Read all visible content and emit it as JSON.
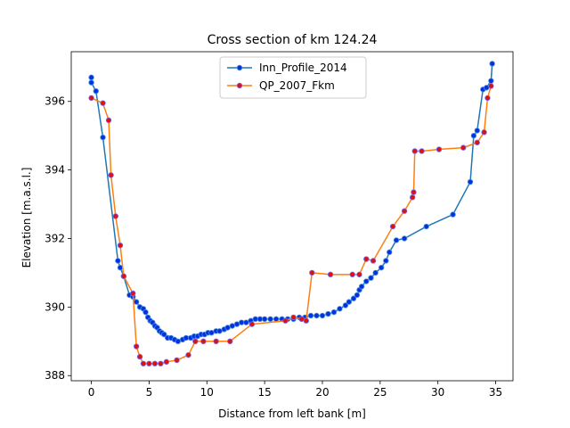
{
  "chart_data": {
    "type": "line",
    "title": "Cross section of km 124.24",
    "xlabel": "Distance from left bank [m]",
    "ylabel": "Elevation [m.a.s.l.]",
    "xlim": [
      -1.74,
      36.5
    ],
    "ylim": [
      387.85,
      397.45
    ],
    "xticks": [
      0,
      5,
      10,
      15,
      20,
      25,
      30,
      35
    ],
    "xtick_labels": [
      "0",
      "5",
      "10",
      "15",
      "20",
      "25",
      "30",
      "35"
    ],
    "yticks": [
      388,
      390,
      392,
      394,
      396
    ],
    "ytick_labels": [
      "388",
      "390",
      "392",
      "394",
      "396"
    ],
    "grid": false,
    "legend_position": "top-center",
    "series": [
      {
        "name": "Inn_Profile_2014",
        "line_color": "#1f77b4",
        "marker_fill": "#0033dd",
        "marker_edge": "#4f8fe0",
        "x": [
          0.0,
          0.0,
          0.4,
          1.0,
          2.3,
          2.5,
          2.8,
          3.3,
          3.6,
          3.9,
          4.2,
          4.5,
          4.7,
          4.9,
          5.1,
          5.3,
          5.5,
          5.7,
          5.9,
          6.1,
          6.3,
          6.6,
          6.9,
          7.2,
          7.5,
          7.9,
          8.2,
          8.6,
          8.9,
          9.2,
          9.5,
          9.8,
          10.1,
          10.4,
          10.8,
          11.1,
          11.5,
          11.8,
          12.2,
          12.6,
          13.0,
          13.4,
          13.8,
          14.2,
          14.6,
          15.0,
          15.5,
          16.0,
          16.5,
          17.0,
          17.5,
          18.0,
          18.5,
          19.0,
          19.5,
          20.0,
          20.5,
          21.0,
          21.5,
          22.0,
          22.3,
          22.7,
          23.0,
          23.2,
          23.4,
          23.8,
          24.2,
          24.6,
          25.1,
          25.5,
          25.8,
          26.4,
          27.1,
          29.0,
          31.3,
          32.8,
          33.1,
          33.4,
          33.9,
          34.2,
          34.6,
          34.7
        ],
        "y": [
          396.7,
          396.55,
          396.3,
          394.95,
          391.35,
          391.15,
          390.9,
          390.35,
          390.3,
          390.15,
          390.0,
          389.95,
          389.85,
          389.7,
          389.6,
          389.55,
          389.45,
          389.4,
          389.3,
          389.25,
          389.2,
          389.1,
          389.1,
          389.05,
          389.0,
          389.05,
          389.1,
          389.1,
          389.15,
          389.15,
          389.2,
          389.2,
          389.25,
          389.25,
          389.3,
          389.3,
          389.35,
          389.4,
          389.45,
          389.5,
          389.55,
          389.55,
          389.6,
          389.65,
          389.65,
          389.65,
          389.65,
          389.65,
          389.65,
          389.65,
          389.65,
          389.7,
          389.7,
          389.75,
          389.75,
          389.75,
          389.8,
          389.85,
          389.95,
          390.05,
          390.15,
          390.25,
          390.35,
          390.5,
          390.6,
          390.75,
          390.85,
          391.0,
          391.15,
          391.35,
          391.6,
          391.95,
          392.0,
          392.35,
          392.7,
          393.65,
          395.0,
          395.15,
          396.35,
          396.4,
          396.6,
          397.1
        ]
      },
      {
        "name": "QP_2007_Fkm",
        "line_color": "#ff7f0e",
        "marker_fill": "#dd1111",
        "marker_edge": "#6f6fff",
        "x": [
          0.0,
          1.0,
          1.5,
          1.7,
          2.1,
          2.5,
          2.8,
          3.6,
          3.9,
          4.2,
          4.5,
          5.0,
          5.5,
          6.0,
          6.5,
          7.4,
          8.4,
          9.0,
          9.7,
          10.8,
          12.0,
          13.9,
          16.8,
          17.5,
          18.2,
          18.6,
          19.1,
          20.7,
          22.6,
          23.2,
          23.8,
          24.4,
          26.1,
          27.1,
          27.8,
          27.9,
          28.0,
          28.6,
          30.1,
          32.2,
          33.4,
          34.0,
          34.3,
          34.6
        ],
        "y": [
          396.1,
          395.95,
          395.45,
          393.85,
          392.65,
          391.8,
          390.9,
          390.4,
          388.85,
          388.55,
          388.35,
          388.35,
          388.35,
          388.35,
          388.4,
          388.45,
          388.6,
          389.0,
          389.0,
          389.0,
          389.0,
          389.5,
          389.6,
          389.7,
          389.65,
          389.6,
          391.0,
          390.95,
          390.95,
          390.95,
          391.4,
          391.35,
          392.35,
          392.8,
          393.2,
          393.35,
          394.55,
          394.55,
          394.6,
          394.65,
          394.8,
          395.1,
          396.1,
          396.45
        ]
      }
    ]
  }
}
